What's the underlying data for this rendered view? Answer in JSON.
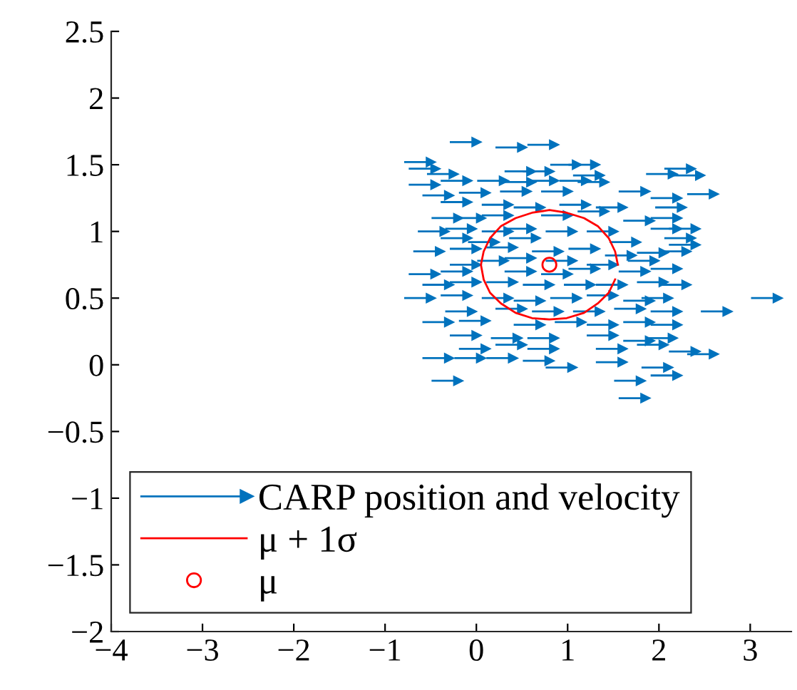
{
  "chart_data": {
    "type": "scatter",
    "xlim": [
      -4,
      3.45
    ],
    "ylim": [
      -2,
      2.5
    ],
    "xticks": [
      {
        "value": -4,
        "label": "−4"
      },
      {
        "value": -3,
        "label": "−3"
      },
      {
        "value": -2,
        "label": "−2"
      },
      {
        "value": -1,
        "label": "−1"
      },
      0,
      1,
      2,
      3
    ],
    "yticks": [
      {
        "value": -2,
        "label": "−2"
      },
      {
        "value": -1.5,
        "label": "−1.5"
      },
      {
        "value": -1,
        "label": "−1"
      },
      {
        "value": -0.5,
        "label": "−0.5"
      },
      0,
      0.5,
      1,
      1.5,
      2,
      2.5
    ],
    "grid": false,
    "legend": "bottom left",
    "series": [
      {
        "name": "CARP position and velocity",
        "type": "scatter",
        "color": "#0072bd",
        "marker": "triangle",
        "x": [
          0.0,
          0.5,
          0.85,
          -0.5,
          -0.45,
          1.1,
          1.3,
          1.35,
          -0.25,
          0.6,
          0.8,
          2.15,
          2.35,
          2.45,
          -0.45,
          -0.1,
          0.3,
          0.6,
          0.85,
          1.2,
          1.4,
          -0.3,
          0.1,
          0.55,
          1.0,
          1.85,
          2.2,
          2.6,
          -0.1,
          0.35,
          0.7,
          1.2,
          1.6,
          2.25,
          -0.2,
          0.05,
          0.35,
          1.0,
          1.4,
          1.9,
          2.2,
          2.4,
          -0.35,
          -0.05,
          0.35,
          0.6,
          1.05,
          1.5,
          2.2,
          2.35,
          -0.1,
          0.2,
          0.65,
          1.75,
          2.4,
          -0.4,
          0.0,
          0.4,
          0.9,
          1.3,
          1.7,
          2.05,
          2.3,
          0.0,
          0.3,
          0.6,
          1.05,
          1.5,
          1.95,
          -0.45,
          -0.1,
          0.6,
          1.0,
          1.3,
          1.85,
          2.2,
          -0.3,
          0.0,
          0.4,
          0.8,
          1.25,
          1.6,
          2.05,
          2.3,
          -0.5,
          -0.1,
          0.35,
          0.7,
          1.1,
          1.5,
          1.9,
          2.1,
          3.3,
          -0.05,
          0.5,
          0.9,
          1.35,
          1.8,
          2.2,
          2.75,
          -0.3,
          0.1,
          0.7,
          1.15,
          1.5,
          1.9,
          2.2,
          0.0,
          0.45,
          0.85,
          1.5,
          1.9,
          2.15,
          0.1,
          0.5,
          0.85,
          1.6,
          2.05,
          2.4,
          -0.3,
          0.05,
          0.4,
          1.6,
          2.6,
          2.1,
          1.05,
          -0.2,
          1.8,
          2.2,
          0.8,
          1.85
        ],
        "values": [
          1.67,
          1.63,
          1.65,
          1.52,
          1.47,
          1.5,
          1.5,
          1.42,
          1.43,
          1.45,
          1.45,
          1.43,
          1.47,
          1.42,
          1.35,
          1.38,
          1.38,
          1.37,
          1.38,
          1.38,
          1.37,
          1.27,
          1.29,
          1.3,
          1.3,
          1.3,
          1.25,
          1.28,
          1.22,
          1.2,
          1.18,
          1.2,
          1.18,
          1.18,
          1.1,
          1.1,
          1.12,
          1.12,
          1.15,
          1.08,
          1.1,
          1.02,
          1.0,
          1.02,
          1.0,
          1.02,
          1.0,
          1.0,
          1.02,
          0.95,
          0.95,
          0.92,
          0.95,
          0.92,
          0.9,
          0.85,
          0.87,
          0.88,
          0.85,
          0.87,
          0.82,
          0.84,
          0.85,
          0.75,
          0.78,
          0.8,
          0.78,
          0.75,
          0.78,
          0.68,
          0.7,
          0.7,
          0.68,
          0.72,
          0.7,
          0.72,
          0.6,
          0.62,
          0.62,
          0.6,
          0.6,
          0.6,
          0.62,
          0.6,
          0.5,
          0.52,
          0.5,
          0.48,
          0.5,
          0.52,
          0.48,
          0.5,
          0.5,
          0.4,
          0.42,
          0.4,
          0.4,
          0.42,
          0.4,
          0.4,
          0.32,
          0.33,
          0.3,
          0.32,
          0.3,
          0.32,
          0.3,
          0.22,
          0.2,
          0.2,
          0.22,
          0.18,
          0.2,
          0.12,
          0.15,
          0.12,
          0.12,
          0.15,
          0.1,
          0.05,
          0.05,
          0.05,
          0.02,
          0.08,
          -0.02,
          -0.02,
          -0.12,
          -0.12,
          -0.08,
          0.03,
          -0.25
        ]
      },
      {
        "name": "μ + 1σ",
        "type": "line",
        "color": "#ff0000",
        "marker": "none",
        "x": [
          1.55,
          1.52,
          1.45,
          1.33,
          1.18,
          0.99,
          0.8,
          0.61,
          0.43,
          0.27,
          0.15,
          0.08,
          0.05,
          0.08,
          0.15,
          0.27,
          0.43,
          0.61,
          0.8,
          0.99,
          1.18,
          1.33,
          1.45,
          1.52
        ],
        "values": [
          0.75,
          0.85,
          0.95,
          1.04,
          1.1,
          1.14,
          1.16,
          1.14,
          1.1,
          1.04,
          0.95,
          0.85,
          0.75,
          0.64,
          0.54,
          0.46,
          0.39,
          0.35,
          0.34,
          0.35,
          0.39,
          0.46,
          0.54,
          0.64
        ]
      },
      {
        "name": "μ",
        "type": "scatter",
        "color": "#ff0000",
        "marker": "circle",
        "x": [
          0.8
        ],
        "values": [
          0.75
        ]
      }
    ]
  }
}
